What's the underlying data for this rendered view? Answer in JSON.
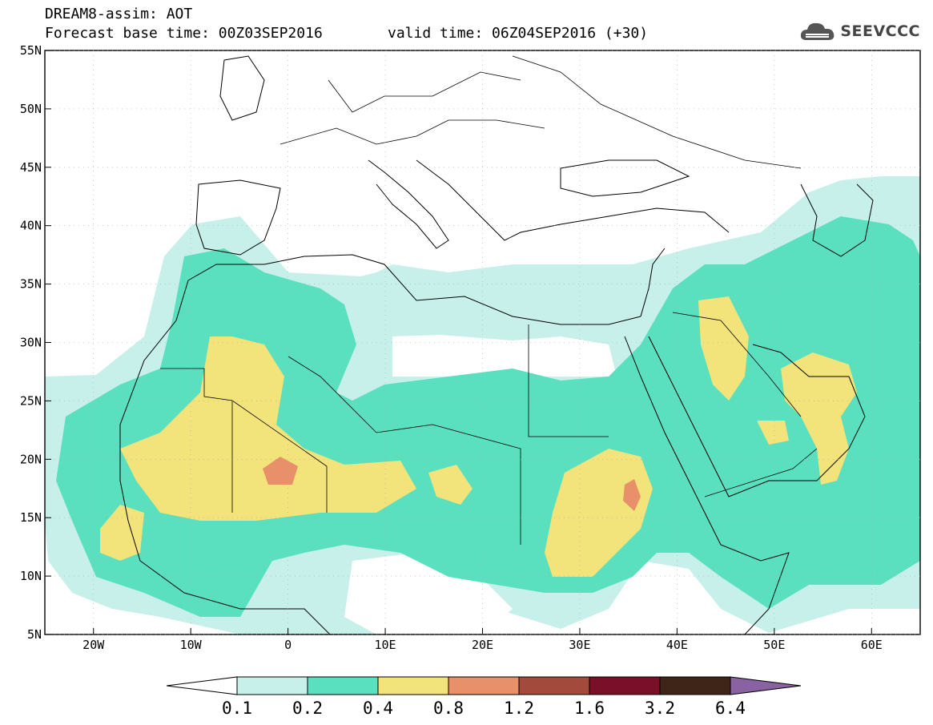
{
  "header": {
    "title": "DREAM8-assim: AOT",
    "base_time": "Forecast base time: 00Z03SEP2016",
    "valid_time": "valid time: 06Z04SEP2016 (+30)"
  },
  "logo": {
    "text": "SEEVCCC",
    "icon": "cloud-icon"
  },
  "axes": {
    "lon_ticks": [
      "20W",
      "10W",
      "0",
      "10E",
      "20E",
      "30E",
      "40E",
      "50E",
      "60E"
    ],
    "lon_values": [
      -20,
      -10,
      0,
      10,
      20,
      30,
      40,
      50,
      60
    ],
    "lat_ticks": [
      "55N",
      "50N",
      "45N",
      "40N",
      "35N",
      "30N",
      "25N",
      "20N",
      "15N",
      "10N",
      "5N"
    ],
    "lat_values": [
      55,
      50,
      45,
      40,
      35,
      30,
      25,
      20,
      15,
      10,
      5
    ],
    "lon_range": [
      -25,
      65
    ],
    "lat_range": [
      5,
      55
    ]
  },
  "colorbar": {
    "labels": [
      "0.1",
      "0.2",
      "0.4",
      "0.8",
      "1.2",
      "1.6",
      "3.2",
      "6.4"
    ],
    "colors": [
      "#ffffff",
      "#c8f0ea",
      "#5ae0bf",
      "#f2e37a",
      "#e8906a",
      "#a34a3c",
      "#7a0f2a",
      "#3e2518",
      "#8a62a2"
    ]
  },
  "colors": {
    "light": "#c8f0ea",
    "teal": "#5ae0bf",
    "yellow": "#f2e37a",
    "orange": "#e8906a"
  }
}
